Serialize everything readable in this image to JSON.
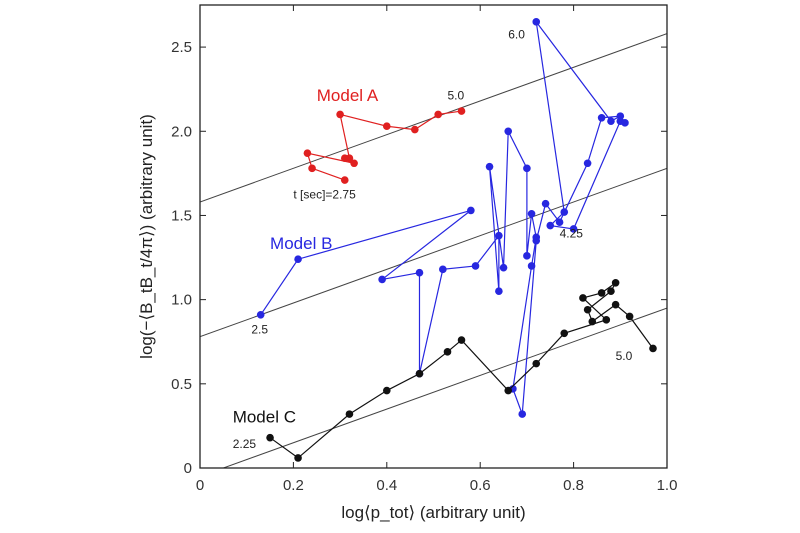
{
  "chart_data": {
    "type": "scatter",
    "title": "",
    "xlabel": "log⟨p_tot⟩ (arbitrary unit)",
    "ylabel": "log(−⟨B_tB_t/4π⟩) (arbitrary unit)",
    "xlim": [
      0,
      1.0
    ],
    "ylim": [
      0,
      2.75
    ],
    "x_ticks": [
      "0",
      "0.2",
      "0.4",
      "0.6",
      "0.8",
      "1.0"
    ],
    "y_ticks": [
      "0",
      "0.5",
      "1.0",
      "1.5",
      "2.0",
      "2.5"
    ],
    "grid": false,
    "series": [
      {
        "name": "Model A",
        "color": "#e02020",
        "x": [
          0.31,
          0.24,
          0.23,
          0.33,
          0.31,
          0.32,
          0.3,
          0.4,
          0.46,
          0.51,
          0.56
        ],
        "y": [
          1.71,
          1.78,
          1.87,
          1.81,
          1.84,
          1.84,
          2.1,
          2.03,
          2.01,
          2.1,
          2.12
        ],
        "label_x": 0.25,
        "label_y": 2.18
      },
      {
        "name": "Model B",
        "color": "#2727e0",
        "x": [
          0.13,
          0.21,
          0.58,
          0.39,
          0.47,
          0.47,
          0.52,
          0.59,
          0.64,
          0.64,
          0.62,
          0.65,
          0.66,
          0.7,
          0.7,
          0.71,
          0.72,
          0.71,
          0.67,
          0.69,
          0.72,
          0.74,
          0.77,
          0.83,
          0.86,
          0.9,
          0.88,
          0.72,
          0.78,
          0.75,
          0.8,
          0.9,
          0.91
        ],
        "y": [
          0.91,
          1.24,
          1.53,
          1.12,
          1.16,
          0.56,
          1.18,
          1.2,
          1.38,
          1.05,
          1.79,
          1.19,
          2.0,
          1.78,
          1.26,
          1.51,
          1.37,
          1.2,
          0.47,
          0.32,
          1.35,
          1.57,
          1.46,
          1.81,
          2.08,
          2.09,
          2.06,
          2.65,
          1.52,
          1.44,
          1.42,
          2.06,
          2.05
        ],
        "label_x": 0.15,
        "label_y": 1.3
      },
      {
        "name": "Model C",
        "color": "#111111",
        "x": [
          0.15,
          0.21,
          0.32,
          0.4,
          0.47,
          0.53,
          0.56,
          0.66,
          0.72,
          0.78,
          0.87,
          0.82,
          0.86,
          0.89,
          0.88,
          0.83,
          0.84,
          0.89,
          0.92,
          0.97
        ],
        "y": [
          0.18,
          0.06,
          0.32,
          0.46,
          0.56,
          0.69,
          0.76,
          0.46,
          0.62,
          0.8,
          0.88,
          1.01,
          1.04,
          1.1,
          1.05,
          0.94,
          0.87,
          0.97,
          0.9,
          0.71
        ],
        "label_x": 0.07,
        "label_y": 0.27
      }
    ],
    "reference_lines": [
      {
        "x1": 0.0,
        "y1": 1.58,
        "x2": 1.0,
        "y2": 2.58
      },
      {
        "x1": 0.0,
        "y1": 0.78,
        "x2": 1.0,
        "y2": 1.78
      },
      {
        "x1": 0.0,
        "y1": -0.05,
        "x2": 1.0,
        "y2": 0.95
      }
    ],
    "annotations": [
      {
        "text": "5.0",
        "x": 0.53,
        "y": 2.19
      },
      {
        "text": "t [sec]=2.75",
        "x": 0.2,
        "y": 1.6
      },
      {
        "text": "6.0",
        "x": 0.66,
        "y": 2.55
      },
      {
        "text": "4.25",
        "x": 0.77,
        "y": 1.37
      },
      {
        "text": "2.5",
        "x": 0.11,
        "y": 0.8
      },
      {
        "text": "2.25",
        "x": 0.07,
        "y": 0.12
      },
      {
        "text": "5.0",
        "x": 0.89,
        "y": 0.64
      }
    ]
  }
}
